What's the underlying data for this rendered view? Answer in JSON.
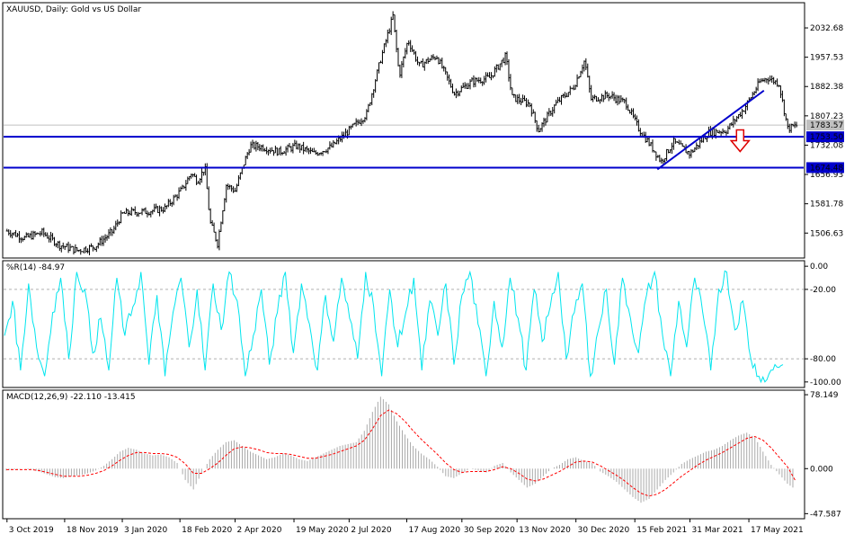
{
  "chart_data": {
    "type": "line",
    "symbol": "XAUUSD",
    "timeframe": "Daily",
    "title": "XAUUSD, Daily:  Gold vs US Dollar",
    "price_panel": {
      "ylim": [
        1445,
        2095
      ],
      "y_ticks": [
        2032.68,
        1957.53,
        1882.38,
        1807.23,
        1732.08,
        1656.93,
        1581.78,
        1506.63
      ],
      "current_price": "1783.57",
      "current_price_value": 1783.57,
      "horizontal_levels": [
        {
          "label": "1753.50",
          "value": 1753.5,
          "color": "#0000cc"
        },
        {
          "label": "1674.48",
          "value": 1674.48,
          "color": "#0000cc"
        }
      ],
      "trendline": {
        "from": [
          "2021-03-05",
          1670
        ],
        "to": [
          "2021-05-29",
          1872
        ],
        "color": "#0000cc"
      },
      "annotation_arrow": {
        "direction": "down",
        "at": [
          "2021-05-10",
          1725
        ],
        "color": "#dd0000"
      },
      "series_color": "#000000",
      "closes": [
        [
          "2019-10-03",
          1512
        ],
        [
          "2019-10-17",
          1494
        ],
        [
          "2019-10-31",
          1508
        ],
        [
          "2019-11-14",
          1476
        ],
        [
          "2019-11-28",
          1462
        ],
        [
          "2019-12-12",
          1472
        ],
        [
          "2019-12-26",
          1510
        ],
        [
          "2020-01-03",
          1555
        ],
        [
          "2020-01-09",
          1560
        ],
        [
          "2020-01-23",
          1562
        ],
        [
          "2020-02-06",
          1570
        ],
        [
          "2020-02-20",
          1620
        ],
        [
          "2020-02-27",
          1660
        ],
        [
          "2020-03-03",
          1640
        ],
        [
          "2020-03-09",
          1675
        ],
        [
          "2020-03-13",
          1535
        ],
        [
          "2020-03-19",
          1480
        ],
        [
          "2020-03-26",
          1630
        ],
        [
          "2020-04-02",
          1615
        ],
        [
          "2020-04-09",
          1685
        ],
        [
          "2020-04-14",
          1730
        ],
        [
          "2020-04-23",
          1728
        ],
        [
          "2020-05-07",
          1715
        ],
        [
          "2020-05-21",
          1730
        ],
        [
          "2020-06-04",
          1710
        ],
        [
          "2020-06-18",
          1728
        ],
        [
          "2020-07-02",
          1770
        ],
        [
          "2020-07-16",
          1812
        ],
        [
          "2020-07-27",
          1950
        ],
        [
          "2020-08-06",
          2063
        ],
        [
          "2020-08-11",
          1910
        ],
        [
          "2020-08-18",
          2002
        ],
        [
          "2020-08-27",
          1935
        ],
        [
          "2020-09-03",
          1950
        ],
        [
          "2020-09-10",
          1960
        ],
        [
          "2020-09-24",
          1865
        ],
        [
          "2020-10-08",
          1895
        ],
        [
          "2020-10-22",
          1905
        ],
        [
          "2020-11-04",
          1960
        ],
        [
          "2020-11-09",
          1855
        ],
        [
          "2020-11-23",
          1838
        ],
        [
          "2020-11-30",
          1770
        ],
        [
          "2020-12-14",
          1838
        ],
        [
          "2020-12-28",
          1880
        ],
        [
          "2021-01-06",
          1950
        ],
        [
          "2021-01-11",
          1850
        ],
        [
          "2021-01-25",
          1860
        ],
        [
          "2021-02-08",
          1840
        ],
        [
          "2021-02-18",
          1775
        ],
        [
          "2021-03-01",
          1725
        ],
        [
          "2021-03-08",
          1690
        ],
        [
          "2021-03-18",
          1740
        ],
        [
          "2021-03-31",
          1710
        ],
        [
          "2021-04-15",
          1765
        ],
        [
          "2021-04-29",
          1770
        ],
        [
          "2021-05-13",
          1825
        ],
        [
          "2021-05-26",
          1895
        ],
        [
          "2021-06-01",
          1905
        ],
        [
          "2021-06-10",
          1890
        ],
        [
          "2021-06-17",
          1775
        ],
        [
          "2021-06-25",
          1783
        ]
      ]
    },
    "williams_r": {
      "label": "%R(14) -84.97",
      "ylim": [
        -104,
        4
      ],
      "y_ticks": [
        "0.00",
        "-20.00",
        "-80.00",
        "-100.00"
      ],
      "y_tick_values": [
        0,
        -20,
        -80,
        -100
      ],
      "levels": [
        -20,
        -80
      ],
      "color": "#00e5ee",
      "values": [
        -60,
        -30,
        -90,
        -15,
        -70,
        -95,
        -40,
        -10,
        -80,
        -5,
        -20,
        -75,
        -45,
        -90,
        -10,
        -60,
        -35,
        -5,
        -85,
        -25,
        -95,
        -40,
        -10,
        -70,
        -20,
        -90,
        -15,
        -55,
        -5,
        -30,
        -95,
        -60,
        -20,
        -85,
        -40,
        -5,
        -75,
        -15,
        -50,
        -90,
        -25,
        -65,
        -10,
        -45,
        -80,
        -5,
        -35,
        -95,
        -20,
        -70,
        -40,
        -10,
        -90,
        -30,
        -60,
        -15,
        -85,
        -25,
        -5,
        -50,
        -95,
        -30,
        -70,
        -10,
        -45,
        -90,
        -20,
        -65,
        -35,
        -5,
        -80,
        -40,
        -15,
        -95,
        -55,
        -20,
        -85,
        -10,
        -45,
        -75,
        -25,
        -5,
        -60,
        -95,
        -30,
        -70,
        -10,
        -40,
        -90,
        -20,
        -5,
        -55,
        -30,
        -80,
        -95,
        -98,
        -85,
        -84.97
      ]
    },
    "macd": {
      "label": "MACD(12,26,9) -22.110 -13.415",
      "ylim": [
        -52,
        82
      ],
      "y_ticks": [
        "78.149",
        "0.000",
        "-47.587"
      ],
      "y_tick_values": [
        78.149,
        0,
        -47.587
      ],
      "histogram_color": "#aaaaaa",
      "signal_color": "#ff0000",
      "histogram": [
        -2,
        -1,
        0,
        -1,
        -3,
        -6,
        -9,
        -10,
        -8,
        -7,
        -5,
        -2,
        3,
        10,
        18,
        22,
        20,
        16,
        14,
        15,
        12,
        6,
        -12,
        -22,
        -5,
        10,
        20,
        28,
        30,
        24,
        18,
        14,
        10,
        12,
        16,
        14,
        10,
        8,
        12,
        16,
        20,
        24,
        26,
        28,
        40,
        60,
        76,
        68,
        50,
        36,
        24,
        16,
        10,
        2,
        -8,
        -10,
        -5,
        0,
        -2,
        -4,
        3,
        6,
        -4,
        -12,
        -20,
        -16,
        -8,
        0,
        4,
        10,
        12,
        8,
        6,
        -3,
        -8,
        -14,
        -22,
        -30,
        -36,
        -32,
        -22,
        -12,
        -4,
        5,
        10,
        14,
        18,
        20,
        24,
        30,
        35,
        38,
        33,
        18,
        4,
        -6,
        -16,
        -22
      ],
      "signal": [
        -1,
        -1,
        -1,
        -1,
        -2,
        -4,
        -6,
        -8,
        -8,
        -8,
        -7,
        -5,
        -2,
        3,
        9,
        14,
        17,
        17,
        16,
        16,
        15,
        12,
        5,
        -5,
        -5,
        0,
        6,
        14,
        21,
        23,
        22,
        20,
        17,
        16,
        16,
        15,
        13,
        11,
        11,
        13,
        15,
        18,
        21,
        24,
        30,
        42,
        56,
        62,
        58,
        50,
        40,
        31,
        23,
        15,
        6,
        -1,
        -4,
        -3,
        -3,
        -3,
        -1,
        2,
        0,
        -5,
        -11,
        -13,
        -11,
        -7,
        -3,
        2,
        7,
        8,
        7,
        3,
        -2,
        -7,
        -13,
        -20,
        -26,
        -29,
        -27,
        -22,
        -15,
        -8,
        -2,
        4,
        9,
        13,
        17,
        22,
        27,
        32,
        34,
        30,
        22,
        12,
        2,
        -13
      ]
    },
    "x_labels": [
      "3 Oct 2019",
      "18 Nov 2019",
      "3 Jan 2020",
      "18 Feb 2020",
      "2 Apr 2020",
      "19 May 2020",
      "2 Jul 2020",
      "17 Aug 2020",
      "30 Sep 2020",
      "13 Nov 2020",
      "30 Dec 2020",
      "15 Feb 2021",
      "31 Mar 2021",
      "17 May 2021"
    ],
    "x_label_dates": [
      "2019-10-03",
      "2019-11-18",
      "2020-01-03",
      "2020-02-18",
      "2020-04-02",
      "2020-05-19",
      "2020-07-02",
      "2020-08-17",
      "2020-09-30",
      "2020-11-13",
      "2020-12-30",
      "2021-02-15",
      "2021-03-31",
      "2021-05-17"
    ]
  }
}
